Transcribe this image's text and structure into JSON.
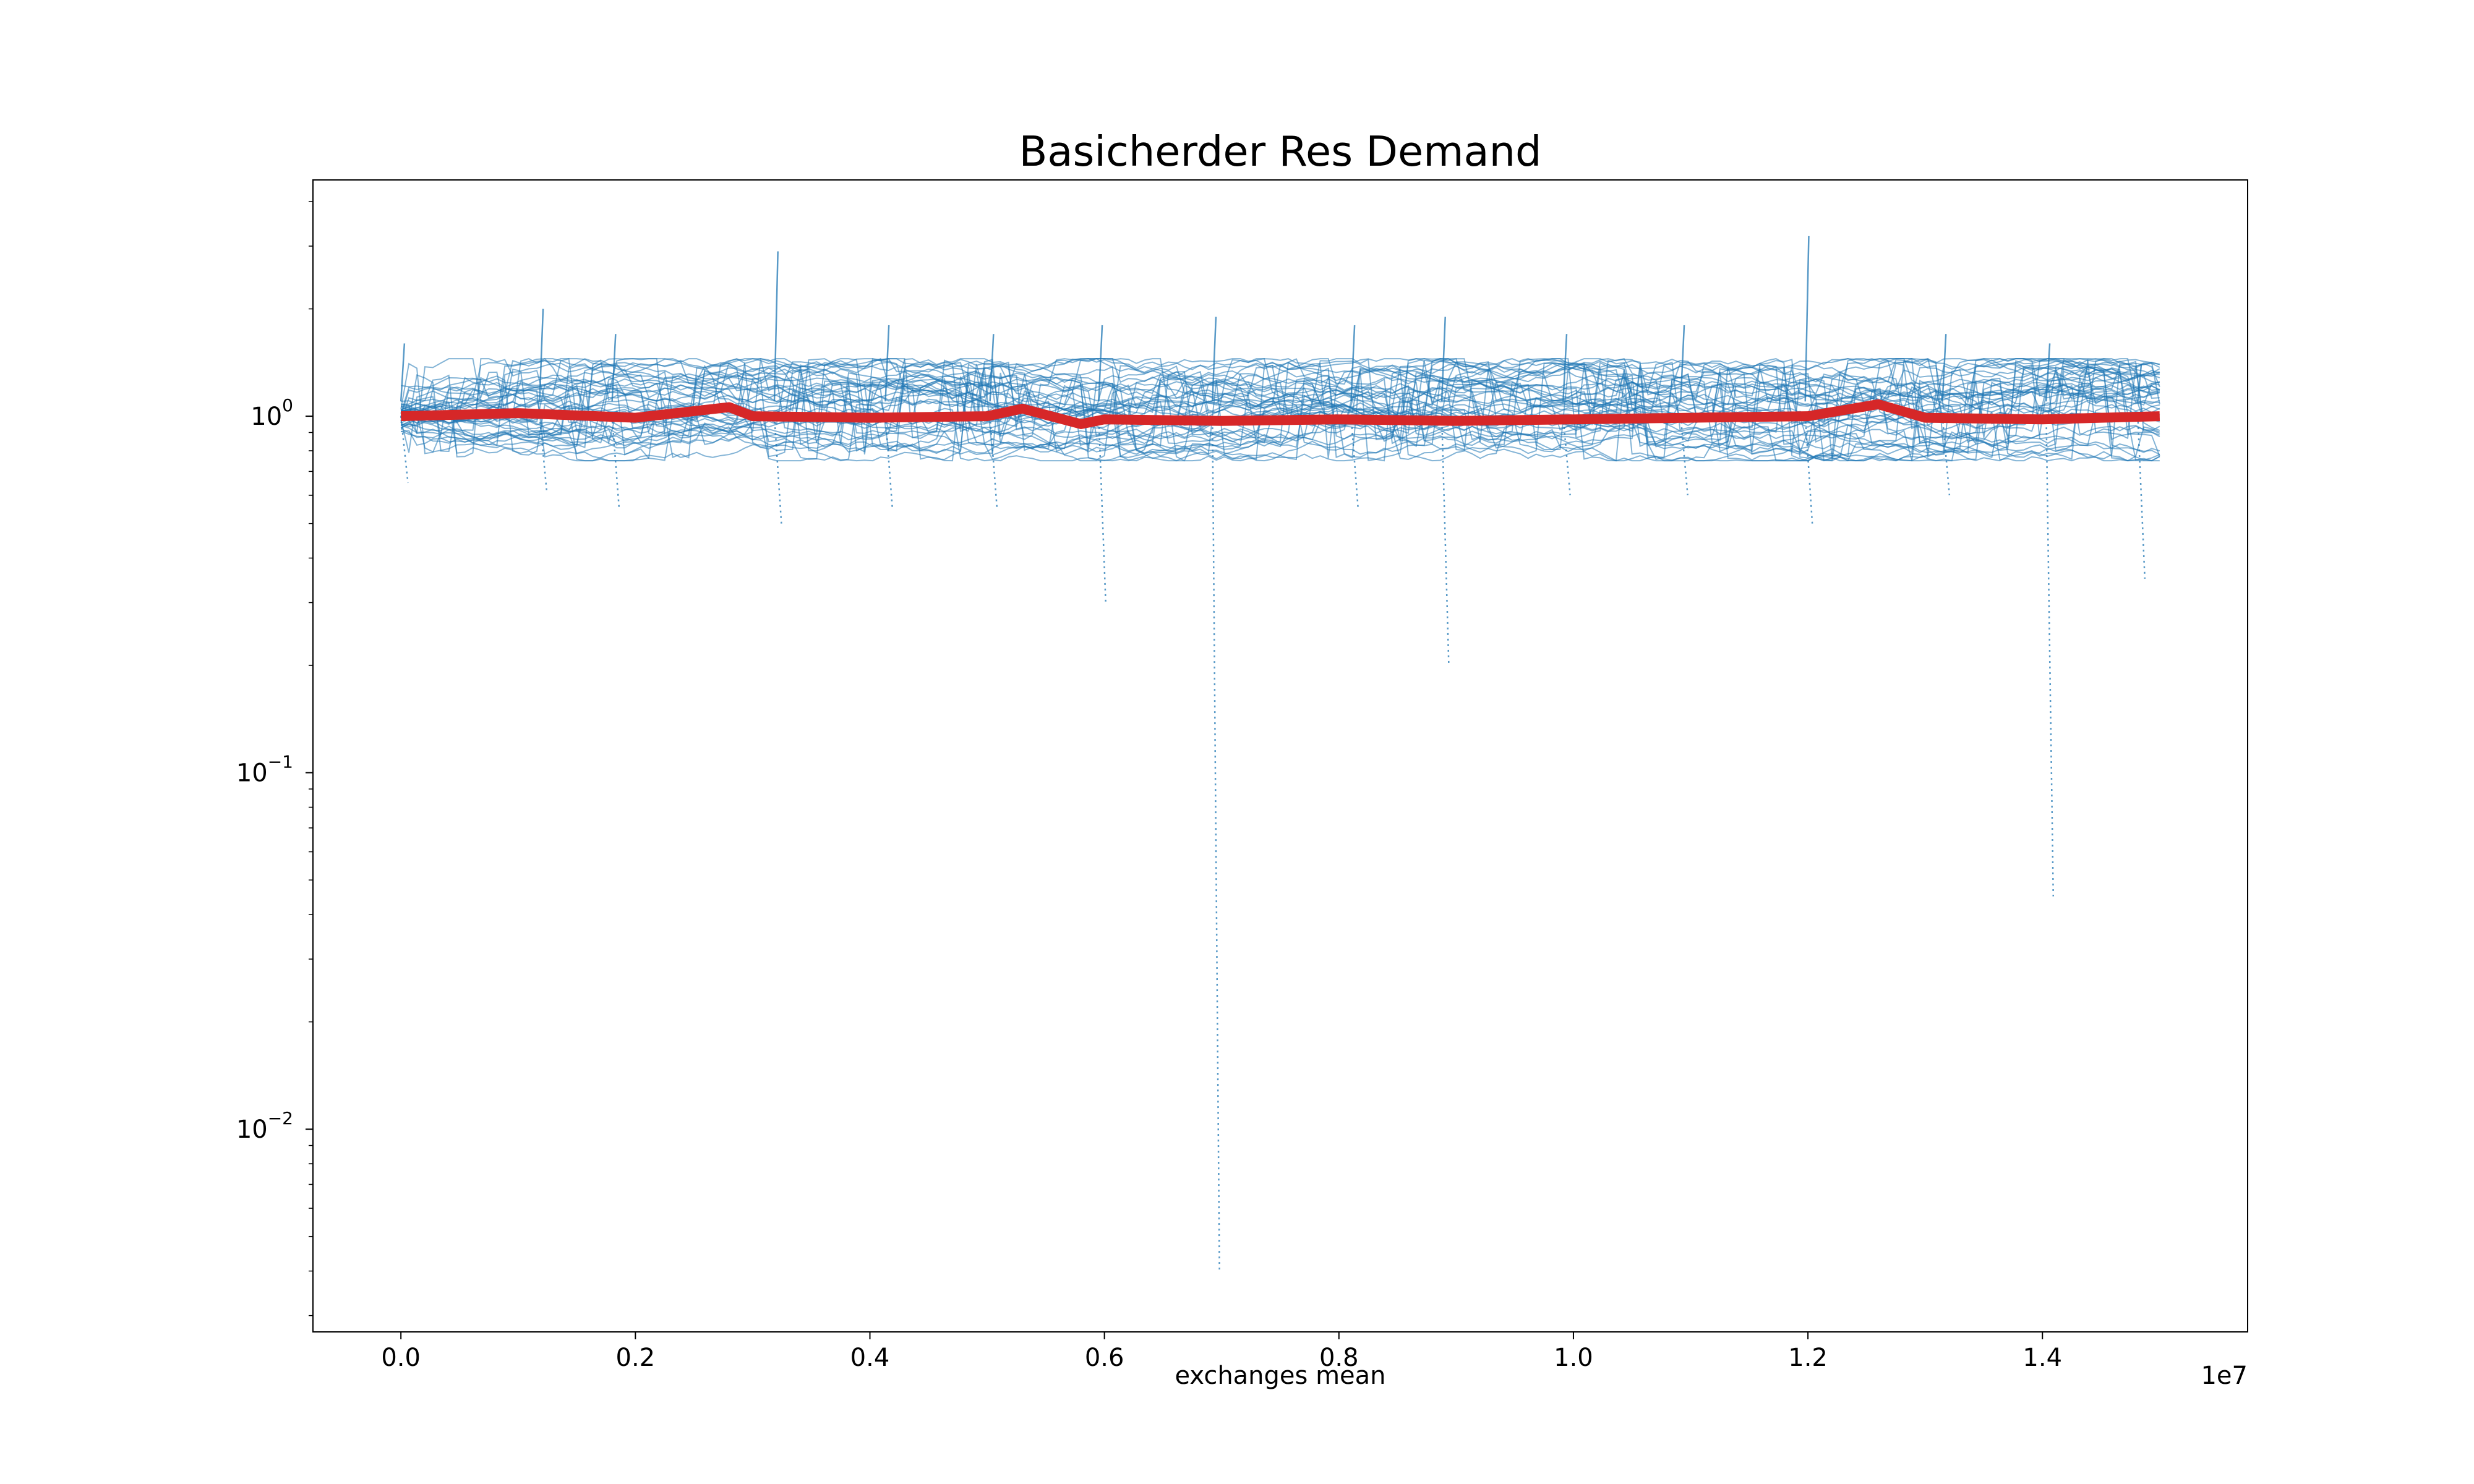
{
  "chart_data": {
    "type": "line",
    "title": "Basicherder Res Demand",
    "xlabel": "exchanges mean",
    "ylabel": "",
    "x_offset_label": "1e7",
    "x_tick_labels": [
      "0.0",
      "0.2",
      "0.4",
      "0.6",
      "0.8",
      "1.0",
      "1.2",
      "1.4"
    ],
    "x_ticks": [
      0,
      2000000,
      4000000,
      6000000,
      8000000,
      10000000,
      12000000,
      14000000
    ],
    "y_tick_labels": [
      {
        "base": "10",
        "exp": "0",
        "value": 1
      },
      {
        "base": "10",
        "exp": "−1",
        "value": 0.1
      },
      {
        "base": "10",
        "exp": "−2",
        "value": 0.01
      }
    ],
    "yscale": "log",
    "xlim": [
      -750000,
      15750000
    ],
    "ylim": [
      0.0027,
      4.6
    ],
    "grid": false,
    "legend": "none",
    "colors": {
      "individual_runs": "#1f77b4",
      "mean": "#d62728"
    },
    "series": [
      {
        "role": "individual runs (many overlapping)",
        "x": [
          0,
          1000000,
          2000000,
          3000000,
          4000000,
          5000000,
          6000000,
          7000000,
          8000000,
          9000000,
          10000000,
          11000000,
          12000000,
          13000000,
          14000000,
          15000000
        ],
        "band_low": [
          0.65,
          0.62,
          0.55,
          0.5,
          0.55,
          0.55,
          0.3,
          0.004,
          0.55,
          0.2,
          0.6,
          0.6,
          0.5,
          0.6,
          0.045,
          0.35
        ],
        "band_high": [
          1.6,
          2.0,
          1.7,
          2.9,
          1.8,
          1.7,
          1.8,
          1.9,
          1.8,
          1.9,
          1.7,
          1.8,
          3.2,
          1.7,
          1.6,
          1.4
        ]
      },
      {
        "role": "mean",
        "x": [
          0,
          1000000,
          2000000,
          2800000,
          3000000,
          4000000,
          5000000,
          5300000,
          5800000,
          6000000,
          7000000,
          8000000,
          9000000,
          10000000,
          11000000,
          12000000,
          12600000,
          13000000,
          14000000,
          15000000
        ],
        "values": [
          1.0,
          1.02,
          0.99,
          1.06,
          1.0,
          0.99,
          1.0,
          1.05,
          0.95,
          0.98,
          0.97,
          0.98,
          0.97,
          0.98,
          0.99,
          1.0,
          1.08,
          0.99,
          0.98,
          1.0
        ]
      }
    ]
  }
}
